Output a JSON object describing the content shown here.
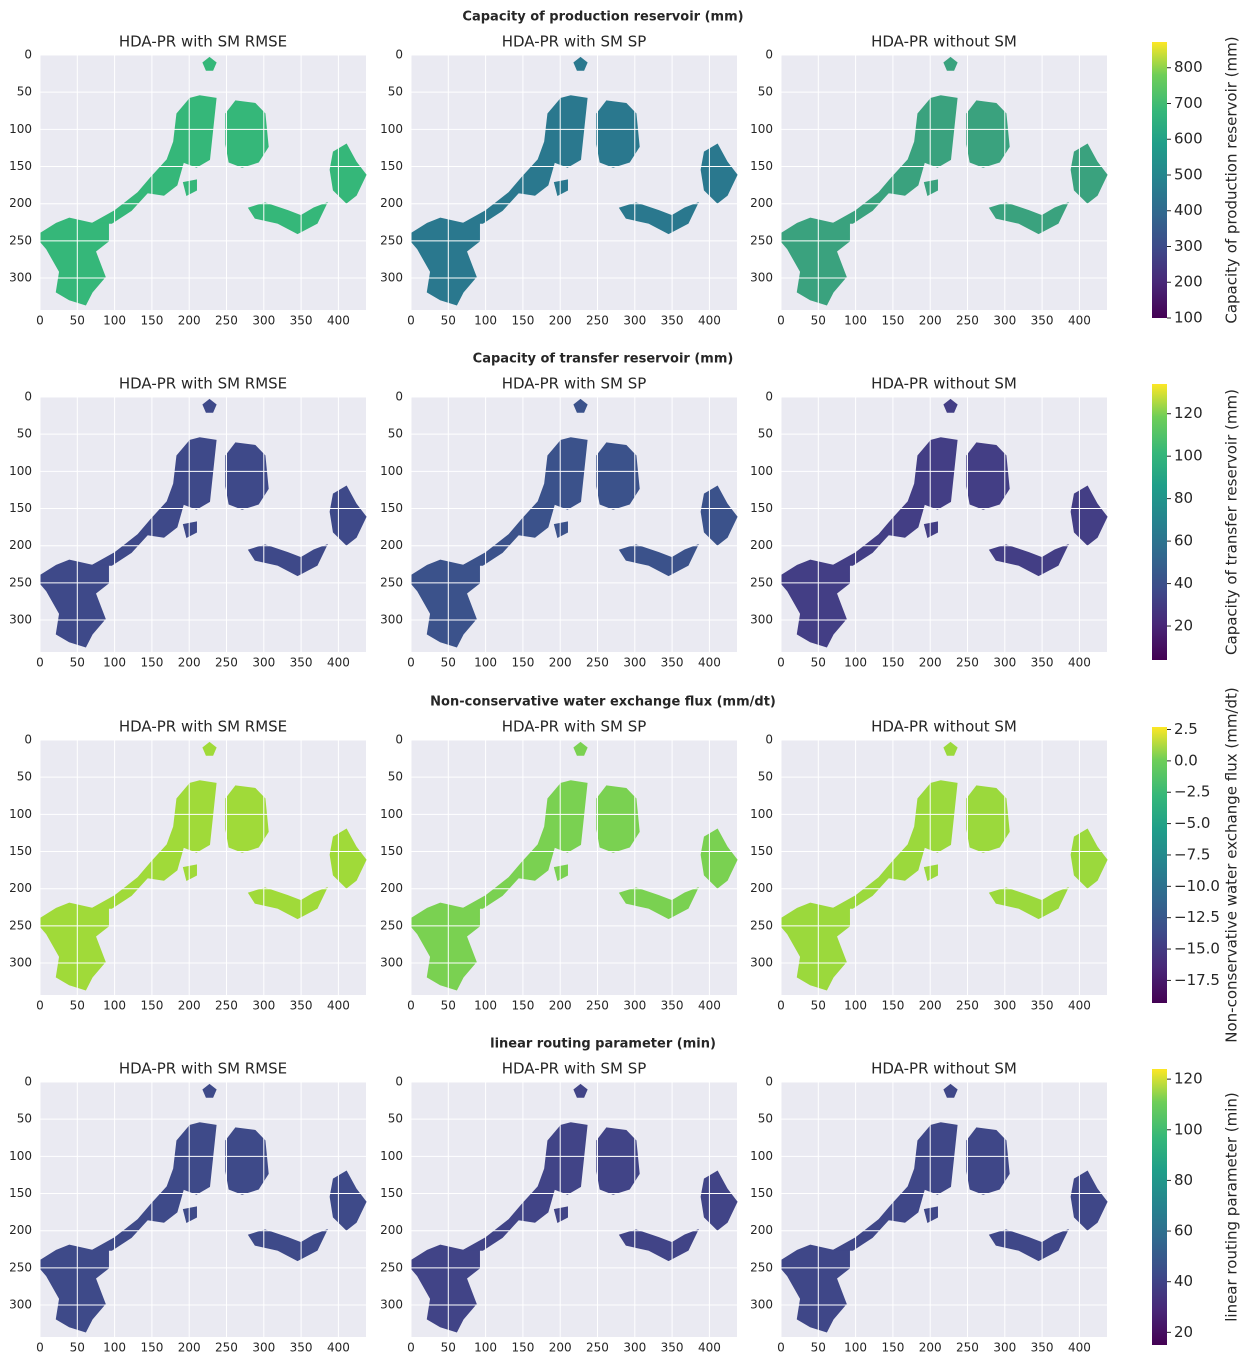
{
  "chart_data": [
    {
      "type": "heatmap",
      "title": "Capacity of production reservoir (mm)",
      "panel_titles": [
        "HDA-PR with SM RMSE",
        "HDA-PR with SM SP",
        "HDA-PR without SM"
      ],
      "xlim": [
        0,
        437
      ],
      "xticks": [
        0,
        50,
        100,
        150,
        200,
        250,
        300,
        350,
        400
      ],
      "ylim": [
        343,
        0
      ],
      "yticks": [
        0,
        50,
        100,
        150,
        200,
        250,
        300
      ],
      "grid": true,
      "colorbar_label": "Capacity of production reservoir (mm)",
      "clim": [
        100,
        872
      ],
      "cticks": [
        100,
        200,
        300,
        400,
        500,
        600,
        700,
        800
      ]
    },
    {
      "type": "heatmap",
      "title": "Capacity of transfer reservoir (mm)",
      "panel_titles": [
        "HDA-PR with SM RMSE",
        "HDA-PR with SM SP",
        "HDA-PR without SM"
      ],
      "xlim": [
        0,
        437
      ],
      "xticks": [
        0,
        50,
        100,
        150,
        200,
        250,
        300,
        350,
        400
      ],
      "ylim": [
        343,
        0
      ],
      "yticks": [
        0,
        50,
        100,
        150,
        200,
        250,
        300
      ],
      "grid": true,
      "colorbar_label": "Capacity of transfer reservoir (mm)",
      "clim": [
        4,
        134
      ],
      "cticks": [
        20,
        40,
        60,
        80,
        100,
        120
      ]
    },
    {
      "type": "heatmap",
      "title": "Non-conservative water exchange flux (mm/dt)",
      "panel_titles": [
        "HDA-PR with SM RMSE",
        "HDA-PR with SM SP",
        "HDA-PR without SM"
      ],
      "xlim": [
        0,
        437
      ],
      "xticks": [
        0,
        50,
        100,
        150,
        200,
        250,
        300,
        350,
        400
      ],
      "ylim": [
        343,
        0
      ],
      "yticks": [
        0,
        50,
        100,
        150,
        200,
        250,
        300
      ],
      "grid": true,
      "colorbar_label": "Non-conservative water exchange flux (mm/dt)",
      "clim": [
        -19.3,
        2.7
      ],
      "cticks": [
        2.5,
        {
          "value": 0,
          "label": "0.0"
        },
        {
          "value": -2.5,
          "label": "−2.5"
        },
        {
          "value": -5,
          "label": "−5.0"
        },
        {
          "value": -7.5,
          "label": "−7.5"
        },
        {
          "value": -10,
          "label": "−10.0"
        },
        {
          "value": -12.5,
          "label": "−12.5"
        },
        {
          "value": -15,
          "label": "−15.0"
        },
        {
          "value": -17.5,
          "label": "−17.5"
        }
      ]
    },
    {
      "type": "heatmap",
      "title": "linear routing parameter (min)",
      "panel_titles": [
        "HDA-PR with SM RMSE",
        "HDA-PR with SM SP",
        "HDA-PR without SM"
      ],
      "xlim": [
        0,
        437
      ],
      "xticks": [
        0,
        50,
        100,
        150,
        200,
        250,
        300,
        350,
        400
      ],
      "ylim": [
        343,
        0
      ],
      "yticks": [
        0,
        50,
        100,
        150,
        200,
        250,
        300
      ],
      "grid": true,
      "colorbar_label": "linear routing parameter (min)",
      "clim": [
        15,
        124
      ],
      "cticks": [
        20,
        40,
        60,
        80,
        100,
        120
      ]
    }
  ]
}
